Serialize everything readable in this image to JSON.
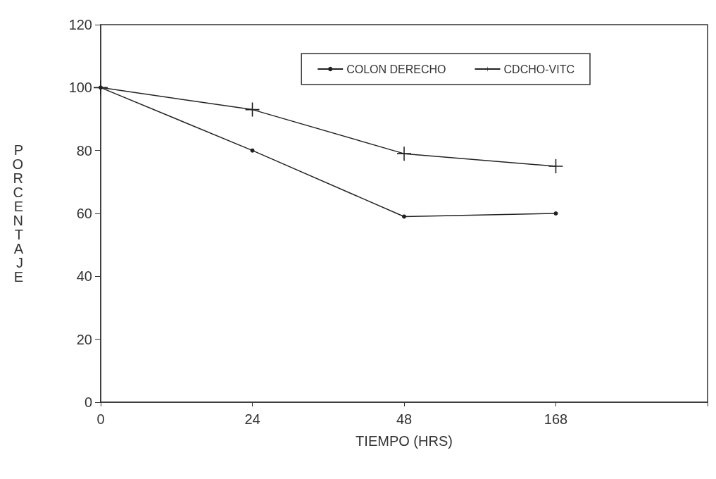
{
  "chart_data": {
    "type": "line",
    "xlabel": "TIEMPO (HRS)",
    "ylabel": "PORCENTAJE",
    "categories": [
      "0",
      "24",
      "48",
      "168",
      null
    ],
    "ylim": [
      0,
      120
    ],
    "yticks": [
      0,
      20,
      40,
      60,
      80,
      100,
      120
    ],
    "grid": false,
    "legend": "top right",
    "line_style": "solid",
    "series": [
      {
        "name": "COLON DERECHO",
        "color": "#222222",
        "marker": "circle",
        "values": [
          100,
          80,
          59,
          60,
          null
        ]
      },
      {
        "name": "CDCHO-VITC",
        "color": "#222222",
        "marker": "cross",
        "values": [
          100,
          93,
          79,
          75,
          null
        ]
      }
    ]
  }
}
